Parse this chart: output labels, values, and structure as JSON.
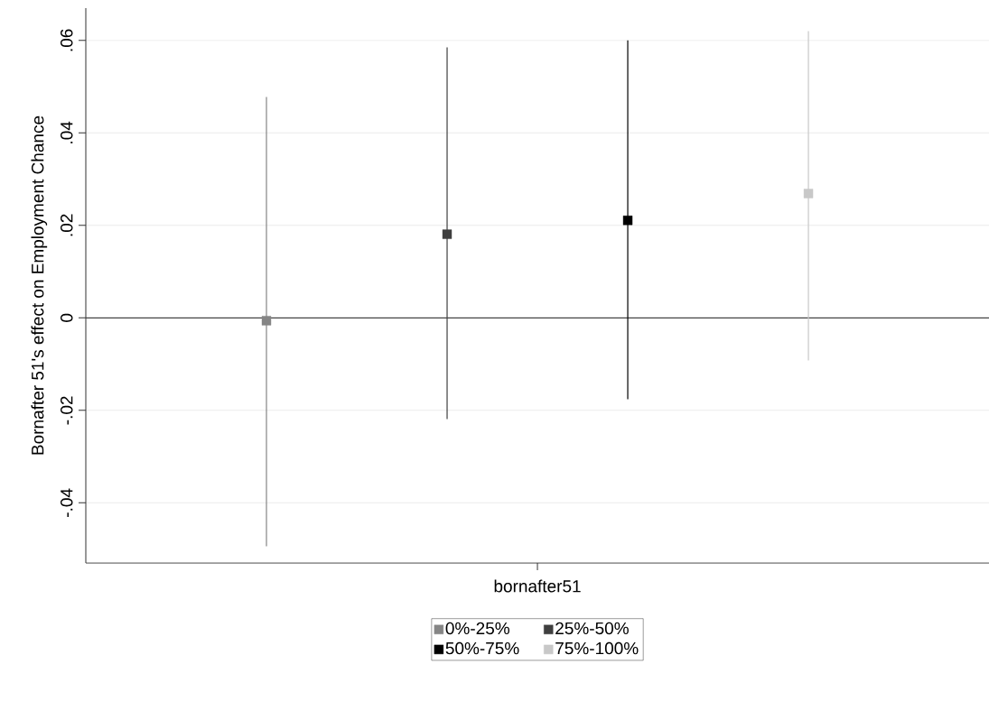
{
  "chart_data": {
    "type": "scatter",
    "ylabel": "Bornafter 51's effect on Employment Chance",
    "categories": [
      "bornafter51"
    ],
    "series": [
      {
        "name": "0%-25%",
        "color": "#858585",
        "values": [
          -0.0006
        ],
        "errors": [
          [
            -0.0494,
            0.0478
          ]
        ]
      },
      {
        "name": "25%-50%",
        "color": "#3f3f3f",
        "values": [
          0.0181
        ],
        "errors": [
          [
            -0.0219,
            0.0585
          ]
        ]
      },
      {
        "name": "50%-75%",
        "color": "#000000",
        "values": [
          0.0211
        ],
        "errors": [
          [
            -0.0176,
            0.06
          ]
        ]
      },
      {
        "name": "75%-100%",
        "color": "#c8c8c8",
        "values": [
          0.0269
        ],
        "errors": [
          [
            -0.0092,
            0.062
          ]
        ]
      }
    ],
    "ylim": [
      -0.053,
      0.067
    ],
    "yticks": [
      {
        "value": -0.04,
        "label": "-.04"
      },
      {
        "value": -0.02,
        "label": "-.02"
      },
      {
        "value": 0,
        "label": "0"
      },
      {
        "value": 0.02,
        "label": ".02"
      },
      {
        "value": 0.04,
        "label": ".04"
      },
      {
        "value": 0.06,
        "label": ".06"
      }
    ],
    "ref_lines": [
      {
        "axis": "y",
        "value": 0,
        "color": "#404040"
      }
    ],
    "grid": "y",
    "legend": "bottom",
    "marker": "square"
  }
}
